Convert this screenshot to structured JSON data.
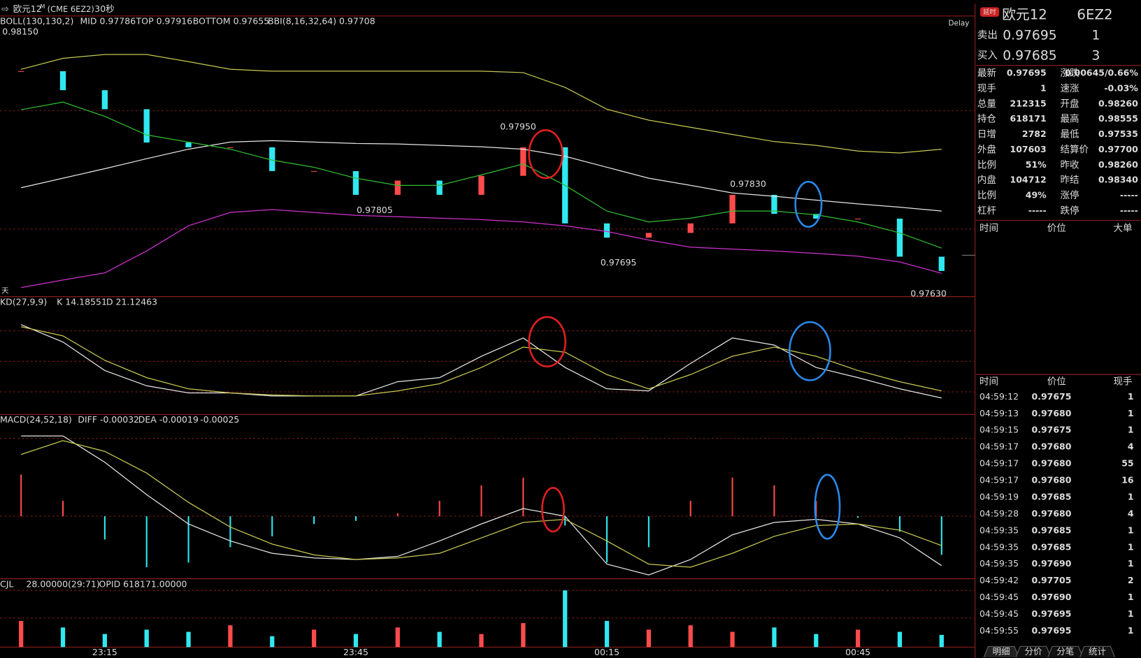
{
  "window": {
    "title": "欧元12",
    "superscript": "M",
    "exchange": "(CME 6EZ2)",
    "period": "30秒"
  },
  "chart_data": [
    {
      "type": "line",
      "legend": [
        "BOLL(130,130,2)",
        "MID 0.97786",
        "TOP 0.97916",
        "BOTTOM 0.97655",
        "BBI(8,16,32,64)",
        "0.97708"
      ],
      "legend_colors": [
        "#ffffff",
        "#ffffff",
        "#e8e84a",
        "#e040e0",
        "#e8e84a",
        "#30e030"
      ],
      "delay_label": "Delay",
      "period_label": "天",
      "ylim": [
        0.97606,
        0.98196
      ],
      "close": {
        "up_color": "#ff4b4b",
        "down_color": "#30e8f0",
        "values": [
          0.9808,
          0.9804,
          0.98,
          0.9793,
          0.9792,
          0.9792,
          0.9787,
          0.9787,
          0.9782,
          0.9785,
          0.9782,
          0.9786,
          0.9792,
          0.9776,
          0.9773,
          0.9774,
          0.9776,
          0.9782,
          0.9778,
          0.9777,
          0.9777,
          0.9769,
          0.9766
        ]
      },
      "series": [
        {
          "color": "#c8c850",
          "values": [
            0.98084,
            0.98107,
            0.98115,
            0.98115,
            0.981,
            0.98084,
            0.9808,
            0.9808,
            0.9808,
            0.9808,
            0.9808,
            0.9808,
            0.98077,
            0.98046,
            0.98,
            0.97977,
            0.97962,
            0.97947,
            0.97932,
            0.97924,
            0.97912,
            0.97908,
            0.97916
          ]
        },
        {
          "color": "#e6e6e6",
          "values": [
            0.97835,
            0.97855,
            0.97875,
            0.97896,
            0.97916,
            0.97931,
            0.97934,
            0.97931,
            0.97928,
            0.97927,
            0.97924,
            0.97921,
            0.97916,
            0.97901,
            0.97878,
            0.97855,
            0.9784,
            0.97824,
            0.97817,
            0.97809,
            0.97801,
            0.97794,
            0.97786
          ]
        },
        {
          "color": "#d030d0",
          "values": [
            0.97625,
            0.97641,
            0.97656,
            0.97702,
            0.97755,
            0.97783,
            0.97789,
            0.97783,
            0.97777,
            0.97774,
            0.97771,
            0.97768,
            0.97763,
            0.97755,
            0.97743,
            0.97725,
            0.9771,
            0.97706,
            0.97702,
            0.97697,
            0.97691,
            0.97679,
            0.97655
          ]
        },
        {
          "color": "#30c030",
          "values": [
            0.97999,
            0.98015,
            0.97985,
            0.97946,
            0.97931,
            0.97916,
            0.97893,
            0.97878,
            0.97855,
            0.9784,
            0.9784,
            0.97862,
            0.97885,
            0.9784,
            0.97786,
            0.97763,
            0.97771,
            0.97786,
            0.97786,
            0.97778,
            0.97763,
            0.9774,
            0.97708
          ]
        }
      ],
      "highs": [
        {
          "value": 0.9815,
          "label": "0.98150"
        },
        {
          "value": 0.9795,
          "label": "0.97950"
        },
        {
          "value": 0.9783,
          "label": "0.97830"
        }
      ],
      "lows": [
        {
          "value": 0.97805,
          "label": "0.97805"
        },
        {
          "value": 0.97695,
          "label": "0.97695"
        },
        {
          "value": 0.9763,
          "label": "0.97630"
        }
      ],
      "high_color": "#ff4b4b",
      "low_color": "#30e8f0"
    },
    {
      "type": "line",
      "legend": [
        "KD(27,9,9)",
        "K 14.18551",
        "D 21.12463"
      ],
      "legend_colors": [
        "#ffffff",
        "#ffffff",
        "#e8e84a"
      ],
      "ylim": [
        0,
        100
      ],
      "series": [
        {
          "color": "#e6e6e6",
          "values": [
            86,
            69,
            41,
            26,
            19,
            19,
            16,
            16,
            16,
            30,
            34,
            55,
            73,
            44,
            23,
            21,
            48,
            73,
            66,
            44,
            34,
            23,
            14
          ]
        },
        {
          "color": "#c8c850",
          "values": [
            84,
            75,
            51,
            34,
            23,
            19,
            17,
            16,
            16,
            21,
            28,
            44,
            64,
            59,
            37,
            23,
            37,
            55,
            64,
            55,
            41,
            30,
            21
          ]
        }
      ]
    },
    {
      "type": "line",
      "legend": [
        "MACD(24,52,18)",
        "DIFF -0.00032",
        "DEA -0.00019",
        "-0.00025"
      ],
      "legend_colors": [
        "#ffffff",
        "#ffffff",
        "#e8e84a",
        "#ffffff"
      ],
      "ylim": [
        -0.0004,
        0.00065
      ],
      "bars": {
        "pos_color": "#ff4b4b",
        "neg_color": "#30e8f0",
        "values": [
          0.00027,
          0.0001,
          -0.00015,
          -0.00033,
          -0.0003,
          -0.0002,
          -0.00013,
          -5e-05,
          -3e-05,
          2e-05,
          0.0001,
          0.0002,
          0.00025,
          -6e-05,
          -0.0003,
          -0.0002,
          0.0001,
          0.00025,
          0.0002,
          0.0001,
          -1e-05,
          -0.0001,
          -0.00025
        ]
      },
      "series": [
        {
          "color": "#e6e6e6",
          "values": [
            0.00052,
            0.00052,
            0.00035,
            0.00014,
            -5e-05,
            -0.00016,
            -0.00024,
            -0.00027,
            -0.00028,
            -0.00026,
            -0.00016,
            -5e-05,
            5e-05,
            0,
            -0.00031,
            -0.00038,
            -0.00028,
            -0.00012,
            -4e-05,
            -2e-05,
            -5e-05,
            -0.00014,
            -0.00032
          ]
        },
        {
          "color": "#c8c850",
          "values": [
            0.0004,
            0.00049,
            0.00042,
            0.00028,
            9e-05,
            -7e-05,
            -0.00018,
            -0.00025,
            -0.00028,
            -0.00027,
            -0.00024,
            -0.00014,
            -4e-05,
            -2e-05,
            -0.00016,
            -0.00031,
            -0.00033,
            -0.00024,
            -0.00013,
            -6e-05,
            -5e-05,
            -9e-05,
            -0.00019
          ]
        }
      ]
    },
    {
      "type": "bar",
      "legend": [
        "CJL",
        "28.00000(29:71)",
        "OPID 618171.00000"
      ],
      "legend_colors": [
        "#ffffff",
        "#ffffff",
        "#ffffff"
      ],
      "ylim": [
        0,
        150
      ],
      "categories": [
        null,
        null,
        "23:15",
        null,
        null,
        null,
        null,
        null,
        "23:45",
        null,
        null,
        null,
        null,
        null,
        "00:15",
        null,
        null,
        null,
        null,
        null,
        "00:45",
        null,
        null
      ],
      "values": [
        60,
        45,
        30,
        40,
        35,
        50,
        25,
        40,
        30,
        45,
        35,
        30,
        55,
        130,
        60,
        40,
        50,
        35,
        45,
        30,
        40,
        35,
        28
      ]
    }
  ],
  "quote": {
    "badge": "延时",
    "name": "欧元12",
    "code": "6EZ2",
    "ask": [
      "卖出",
      "0.97695",
      "1"
    ],
    "bid": [
      "买入",
      "0.97685",
      "3"
    ],
    "stats": [
      [
        "最新",
        "0.97695",
        "涨跌",
        "0.00645/0.66%"
      ],
      [
        "现手",
        "1",
        "速涨",
        "-0.03%"
      ],
      [
        "总量",
        "212315",
        "开盘",
        "0.98260"
      ],
      [
        "持仓",
        "618171",
        "最高",
        "0.98555"
      ],
      [
        "日增",
        "2782",
        "最低",
        "0.97535"
      ],
      [
        "外盘",
        "107603",
        "结算价",
        "0.97700"
      ],
      [
        "比例",
        "51%",
        "昨收",
        "0.98260"
      ],
      [
        "内盘",
        "104712",
        "昨结",
        "0.98340"
      ],
      [
        "比例",
        "49%",
        "涨停",
        "-----"
      ],
      [
        "杠杆",
        "-----",
        "跌停",
        "-----"
      ]
    ],
    "stat_colors": [
      [
        "#30e030",
        "#30e030"
      ],
      [
        "#e8e84a",
        "#30e030"
      ],
      [
        "#e8e84a",
        "#30e030"
      ],
      [
        "#e8e84a",
        "#ff4040"
      ],
      [
        "#e8e84a",
        "#30e030"
      ],
      [
        "#e8e84a",
        "#30e030"
      ],
      [
        "#e8e84a",
        "#ffffff"
      ],
      [
        "#e8e84a",
        "#ffffff"
      ],
      [
        "#e8e84a",
        "#ff4040"
      ],
      [
        "#e8e84a",
        "#30e030"
      ]
    ]
  },
  "big_orders": {
    "header": [
      "时间",
      "价位",
      "大单"
    ]
  },
  "trades": {
    "header": [
      "时间",
      "价位",
      "现手"
    ],
    "rows": [
      [
        "04:59:12",
        "0.97675",
        "1"
      ],
      [
        "04:59:13",
        "0.97680",
        "1"
      ],
      [
        "04:59:15",
        "0.97675",
        "1"
      ],
      [
        "04:59:17",
        "0.97680",
        "4"
      ],
      [
        "04:59:17",
        "0.97680",
        "55"
      ],
      [
        "04:59:17",
        "0.97680",
        "16"
      ],
      [
        "04:59:19",
        "0.97685",
        "1"
      ],
      [
        "04:59:28",
        "0.97680",
        "4"
      ],
      [
        "04:59:35",
        "0.97685",
        "1"
      ],
      [
        "04:59:35",
        "0.97685",
        "1"
      ],
      [
        "04:59:35",
        "0.97690",
        "1"
      ],
      [
        "04:59:42",
        "0.97705",
        "2"
      ],
      [
        "04:59:45",
        "0.97690",
        "1"
      ],
      [
        "04:59:45",
        "0.97695",
        "1"
      ],
      [
        "04:59:55",
        "0.97695",
        "1"
      ]
    ],
    "qty_colors": [
      "#30e030",
      "#ff4040",
      "#30e030",
      "#ff4040",
      "#ff4040",
      "#ff4040",
      "#ff4040",
      "#30e030",
      "#30e030",
      "#30e030",
      "#30e030",
      "#ff4040",
      "#30e030",
      "#30e030",
      "#ff4040"
    ]
  },
  "tabs": [
    "明细",
    "分价",
    "分笔",
    "统计"
  ]
}
